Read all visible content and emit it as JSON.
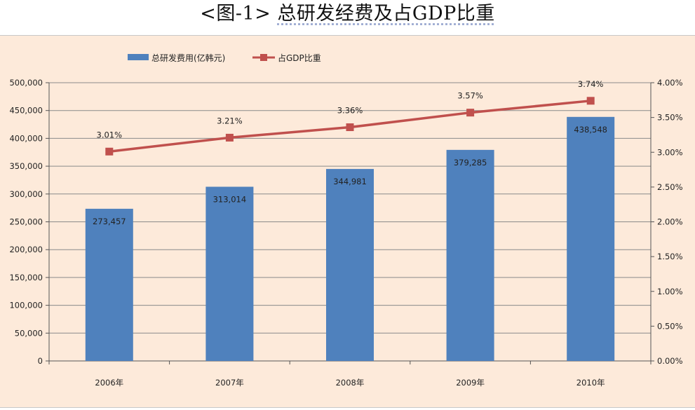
{
  "figure": {
    "prefix": "<图-1>",
    "title": "总研发经费及占GDP比重"
  },
  "chart_data": {
    "type": "bar",
    "categories": [
      "2006年",
      "2007年",
      "2008年",
      "2009年",
      "2010年"
    ],
    "series": [
      {
        "name": "总研发费用(亿韩元)",
        "type": "bar",
        "axis": "left",
        "color": "#4f81bd",
        "values": [
          273457,
          313014,
          344981,
          379285,
          438548
        ],
        "labels": [
          "273,457",
          "313,014",
          "344,981",
          "379,285",
          "438,548"
        ]
      },
      {
        "name": "占GDP比重",
        "type": "line",
        "axis": "right",
        "color": "#c0504d",
        "values": [
          3.01,
          3.21,
          3.36,
          3.57,
          3.74
        ],
        "labels": [
          "3.01%",
          "3.21%",
          "3.36%",
          "3.57%",
          "3.74%"
        ]
      }
    ],
    "y_left": {
      "ylim": [
        0,
        500000
      ],
      "ticks": [
        "0",
        "50,000",
        "100,000",
        "150,000",
        "200,000",
        "250,000",
        "300,000",
        "350,000",
        "400,000",
        "450,000",
        "500,000"
      ]
    },
    "y_right": {
      "ylim": [
        0,
        4.0
      ],
      "ticks": [
        "0.00%",
        "0.50%",
        "1.00%",
        "1.50%",
        "2.00%",
        "2.50%",
        "3.00%",
        "3.50%",
        "4.00%"
      ]
    },
    "grid": true,
    "legend_position": "top-left"
  }
}
